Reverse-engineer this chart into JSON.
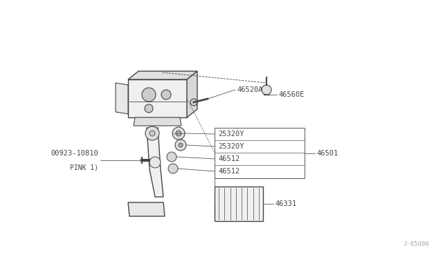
{
  "background_color": "#ffffff",
  "dc": "#444444",
  "lc": "#555555",
  "figsize": [
    6.4,
    3.72
  ],
  "dpi": 100,
  "watermark": "J·65006",
  "xlim": [
    0,
    640
  ],
  "ylim": [
    0,
    372
  ]
}
